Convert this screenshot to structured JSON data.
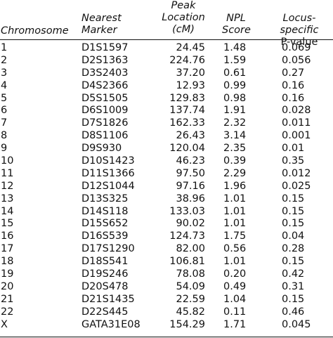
{
  "headers": {
    "chromosome": "Chromosome",
    "marker_line1": "Nearest",
    "marker_line2": "Marker",
    "peak_line1": "Peak",
    "peak_line2": "Location",
    "peak_line3": "(cM)",
    "npl_line1": "NPL",
    "npl_line2": "Score",
    "pval_line1": "Locus-specific",
    "pval_line2": "P-value"
  },
  "rows": [
    {
      "chromosome": "1",
      "marker": "D1S1597",
      "peak": "24.45",
      "npl": "1.48",
      "pvalue": "0.069"
    },
    {
      "chromosome": "2",
      "marker": "D2S1363",
      "peak": "224.76",
      "npl": "1.59",
      "pvalue": "0.056"
    },
    {
      "chromosome": "3",
      "marker": "D3S2403",
      "peak": "37.20",
      "npl": "0.61",
      "pvalue": "0.27"
    },
    {
      "chromosome": "4",
      "marker": "D4S2366",
      "peak": "12.93",
      "npl": "0.99",
      "pvalue": "0.16"
    },
    {
      "chromosome": "5",
      "marker": "D5S1505",
      "peak": "129.83",
      "npl": "0.98",
      "pvalue": "0.16"
    },
    {
      "chromosome": "6",
      "marker": "D6S1009",
      "peak": "137.74",
      "npl": "1.91",
      "pvalue": "0.028"
    },
    {
      "chromosome": "7",
      "marker": "D7S1826",
      "peak": "162.33",
      "npl": "2.32",
      "pvalue": "0.011"
    },
    {
      "chromosome": "8",
      "marker": "D8S1106",
      "peak": "26.43",
      "npl": "3.14",
      "pvalue": "0.001"
    },
    {
      "chromosome": "9",
      "marker": "D9S930",
      "peak": "120.04",
      "npl": "2.35",
      "pvalue": "0.01"
    },
    {
      "chromosome": "10",
      "marker": "D10S1423",
      "peak": "46.23",
      "npl": "0.39",
      "pvalue": "0.35"
    },
    {
      "chromosome": "11",
      "marker": "D11S1366",
      "peak": "97.50",
      "npl": "2.29",
      "pvalue": "0.012"
    },
    {
      "chromosome": "12",
      "marker": "D12S1044",
      "peak": "97.16",
      "npl": "1.96",
      "pvalue": "0.025"
    },
    {
      "chromosome": "13",
      "marker": "D13S325",
      "peak": "38.96",
      "npl": "1.01",
      "pvalue": "0.15"
    },
    {
      "chromosome": "14",
      "marker": "D14S118",
      "peak": "133.03",
      "npl": "1.01",
      "pvalue": "0.15"
    },
    {
      "chromosome": "15",
      "marker": "D15S652",
      "peak": "90.02",
      "npl": "1.01",
      "pvalue": "0.15"
    },
    {
      "chromosome": "16",
      "marker": "D16S539",
      "peak": "124.73",
      "npl": "1.75",
      "pvalue": "0.04"
    },
    {
      "chromosome": "17",
      "marker": "D17S1290",
      "peak": "82.00",
      "npl": "0.56",
      "pvalue": "0.28"
    },
    {
      "chromosome": "18",
      "marker": "D18S541",
      "peak": "106.81",
      "npl": "1.01",
      "pvalue": "0.15"
    },
    {
      "chromosome": "19",
      "marker": "D19S246",
      "peak": "78.08",
      "npl": "0.20",
      "pvalue": "0.42"
    },
    {
      "chromosome": "20",
      "marker": "D20S478",
      "peak": "54.09",
      "npl": "0.49",
      "pvalue": "0.31"
    },
    {
      "chromosome": "21",
      "marker": "D21S1435",
      "peak": "22.59",
      "npl": "1.04",
      "pvalue": "0.15"
    },
    {
      "chromosome": "22",
      "marker": "D22S445",
      "peak": "45.82",
      "npl": "0.11",
      "pvalue": "0.46"
    },
    {
      "chromosome": "X",
      "marker": "GATA31E08",
      "peak": "154.29",
      "npl": "1.71",
      "pvalue": "0.045"
    }
  ]
}
